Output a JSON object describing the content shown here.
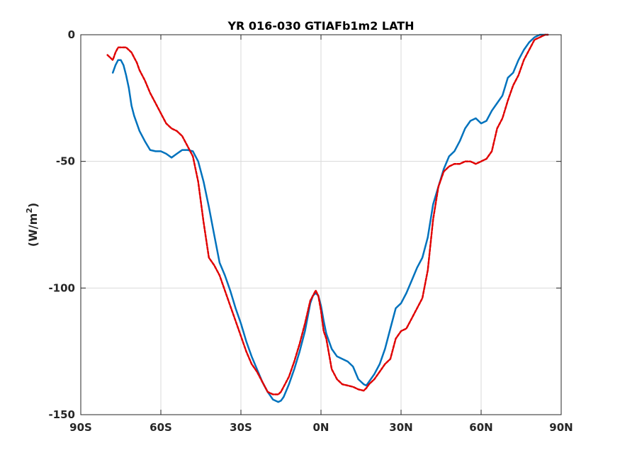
{
  "chart_data": {
    "type": "line",
    "title": "YR 016-030 GTIAFb1m2 LATH",
    "ylabel_main": "(W/m",
    "ylabel_sup": "2",
    "ylabel_end": ")",
    "xlabel": "",
    "xlim": [
      -90,
      90
    ],
    "ylim": [
      -150,
      0
    ],
    "grid": true,
    "x_ticks": [
      {
        "value": -90,
        "label": "90S"
      },
      {
        "value": -60,
        "label": "60S"
      },
      {
        "value": -30,
        "label": "30S"
      },
      {
        "value": 0,
        "label": "0N"
      },
      {
        "value": 30,
        "label": "30N"
      },
      {
        "value": 60,
        "label": "60N"
      },
      {
        "value": 90,
        "label": "90N"
      }
    ],
    "y_ticks": [
      {
        "value": 0,
        "label": "0"
      },
      {
        "value": -50,
        "label": "-50"
      },
      {
        "value": -100,
        "label": "-100"
      },
      {
        "value": -150,
        "label": "-150"
      }
    ],
    "colors": {
      "series1": "#0072bd",
      "series2": "#e00000",
      "grid": "#d9d9d9",
      "axis": "#262626"
    },
    "series": [
      {
        "style": "solid",
        "x": [
          -78,
          -77,
          -76,
          -75,
          -74,
          -73,
          -72,
          -71,
          -70,
          -69,
          -68,
          -66,
          -64,
          -62,
          -60,
          -58,
          -56,
          -54,
          -52,
          -50,
          -48,
          -46,
          -44,
          -42,
          -40,
          -38,
          -36,
          -34,
          -32,
          -30,
          -28,
          -26,
          -24,
          -22,
          -20,
          -18,
          -16,
          -15,
          -14,
          -12,
          -10,
          -8,
          -6,
          -4,
          -3,
          -2,
          -1,
          -0.5,
          0,
          0.5,
          1,
          2,
          3,
          4,
          6,
          8,
          10,
          12,
          14,
          16,
          17,
          18,
          20,
          22,
          24,
          26,
          28,
          30,
          32,
          34,
          36,
          38,
          40,
          42,
          44,
          46,
          48,
          50,
          52,
          54,
          56,
          58,
          60,
          62,
          64,
          66,
          68,
          70,
          72,
          74,
          76,
          78,
          80,
          82,
          84,
          85
        ],
        "y": [
          -15,
          -12,
          -10,
          -10,
          -12,
          -16,
          -21,
          -28,
          -32,
          -35,
          -38,
          -42,
          -45.5,
          -46,
          -46,
          -47,
          -48.5,
          -47,
          -45.5,
          -45.5,
          -46,
          -50,
          -58,
          -68,
          -79,
          -90,
          -95,
          -101,
          -108,
          -114,
          -121,
          -127,
          -132,
          -137,
          -141,
          -144,
          -145,
          -144.5,
          -143,
          -138,
          -132,
          -125,
          -117,
          -106,
          -103,
          -102,
          -103,
          -105,
          -107,
          -110,
          -113,
          -118,
          -121,
          -124,
          -127,
          -128,
          -129,
          -131,
          -136,
          -138,
          -138.5,
          -137,
          -134,
          -130,
          -124,
          -116,
          -108,
          -106,
          -102,
          -97,
          -92,
          -88,
          -80,
          -67,
          -60,
          -53,
          -48,
          -46,
          -42,
          -37,
          -34,
          -33,
          -35,
          -34,
          -30,
          -27,
          -24,
          -17,
          -15,
          -10,
          -6,
          -3,
          -1,
          0,
          0,
          0
        ]
      },
      {
        "style": "dashed",
        "x": [
          -80,
          -78,
          -77,
          -76,
          -75,
          -74,
          -73,
          -72,
          -71,
          -70,
          -69,
          -68,
          -66,
          -64,
          -62,
          -60,
          -58,
          -56,
          -54,
          -52,
          -50,
          -48,
          -46,
          -44,
          -42,
          -40,
          -38,
          -36,
          -34,
          -32,
          -30,
          -28,
          -26,
          -24,
          -22,
          -20,
          -18,
          -16,
          -15,
          -14,
          -12,
          -10,
          -8,
          -6,
          -4,
          -3,
          -2,
          -1,
          -0.5,
          0,
          0.5,
          1,
          2,
          3,
          4,
          6,
          8,
          10,
          12,
          14,
          16,
          17,
          18,
          20,
          22,
          24,
          26,
          28,
          30,
          32,
          34,
          36,
          38,
          40,
          42,
          44,
          46,
          48,
          50,
          52,
          54,
          56,
          58,
          60,
          62,
          64,
          66,
          68,
          70,
          72,
          74,
          76,
          78,
          80,
          82,
          84,
          85
        ],
        "y": [
          -8,
          -10,
          -7,
          -5,
          -5,
          -5,
          -5,
          -6,
          -7,
          -9,
          -11,
          -14,
          -18,
          -23,
          -27,
          -31,
          -35,
          -37,
          -38,
          -40,
          -44,
          -48,
          -58,
          -74,
          -88,
          -91,
          -95,
          -101,
          -107,
          -113,
          -119,
          -125,
          -130,
          -133,
          -137,
          -141,
          -142,
          -142,
          -141,
          -139,
          -135,
          -129,
          -122,
          -114,
          -105,
          -103,
          -101,
          -103,
          -106,
          -109,
          -113,
          -117,
          -120,
          -126,
          -132,
          -136,
          -138,
          -138.5,
          -139,
          -140,
          -140.5,
          -139.5,
          -138,
          -136,
          -133,
          -130,
          -128,
          -120,
          -117,
          -116,
          -112,
          -108,
          -104,
          -93,
          -73,
          -60,
          -54,
          -52,
          -51,
          -51,
          -50,
          -50,
          -51,
          -50,
          -49,
          -46,
          -37,
          -33,
          -26,
          -20,
          -16,
          -10,
          -6,
          -2,
          -1,
          0,
          0
        ]
      }
    ]
  }
}
